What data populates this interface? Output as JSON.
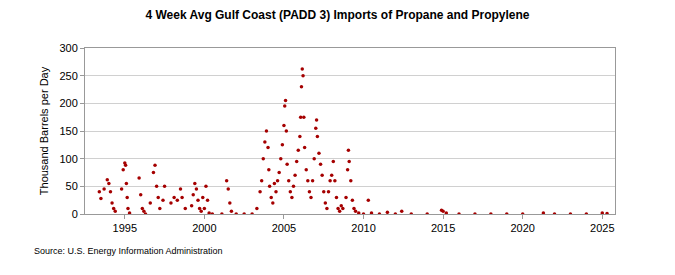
{
  "chart_data": {
    "type": "scatter",
    "title": "4 Week Avg Gulf Coast (PADD 3) Imports of Propane and Propylene",
    "y_label": "Thousand Barrels per Day",
    "source": "Source: U.S. Energy Information Administration",
    "x": [
      1993.4,
      1993.5,
      1993.7,
      1993.9,
      1994.0,
      1994.1,
      1994.2,
      1994.3,
      1994.4,
      1994.8,
      1994.9,
      1995.0,
      1995.05,
      1995.1,
      1995.15,
      1995.2,
      1995.3,
      1995.9,
      1996.0,
      1996.1,
      1996.2,
      1996.3,
      1996.6,
      1996.8,
      1996.9,
      1997.0,
      1997.1,
      1997.2,
      1997.4,
      1997.5,
      1997.9,
      1998.1,
      1998.3,
      1998.5,
      1998.6,
      1998.8,
      1999.2,
      1999.3,
      1999.4,
      1999.5,
      1999.6,
      1999.7,
      1999.8,
      1999.9,
      2000.0,
      2000.1,
      2000.2,
      2000.3,
      2000.5,
      2001.1,
      2001.4,
      2001.5,
      2001.6,
      2001.7,
      2002.0,
      2002.5,
      2003.0,
      2003.3,
      2003.5,
      2003.6,
      2003.7,
      2003.8,
      2003.9,
      2004.0,
      2004.05,
      2004.1,
      2004.2,
      2004.3,
      2004.4,
      2004.5,
      2004.6,
      2004.7,
      2004.8,
      2004.9,
      2005.0,
      2005.05,
      2005.1,
      2005.15,
      2005.2,
      2005.3,
      2005.4,
      2005.5,
      2005.6,
      2005.7,
      2005.8,
      2005.9,
      2006.0,
      2006.05,
      2006.1,
      2006.15,
      2006.2,
      2006.25,
      2006.3,
      2006.4,
      2006.5,
      2006.6,
      2006.7,
      2006.8,
      2006.9,
      2007.0,
      2007.05,
      2007.1,
      2007.2,
      2007.3,
      2007.4,
      2007.5,
      2007.6,
      2007.7,
      2007.8,
      2007.9,
      2008.0,
      2008.1,
      2008.2,
      2008.3,
      2008.4,
      2008.5,
      2008.6,
      2008.7,
      2008.9,
      2009.0,
      2009.05,
      2009.1,
      2009.2,
      2009.3,
      2009.4,
      2009.5,
      2009.7,
      2010.0,
      2010.3,
      2010.5,
      2011.0,
      2011.5,
      2012.0,
      2012.4,
      2013.0,
      2014.0,
      2014.9,
      2015.0,
      2015.2,
      2016.0,
      2017.0,
      2018.0,
      2019.0,
      2020.0,
      2021.3,
      2022.0,
      2023.0,
      2024.0,
      2025.0,
      2025.3
    ],
    "values": [
      40,
      28,
      45,
      62,
      55,
      40,
      20,
      10,
      5,
      45,
      80,
      92,
      88,
      55,
      30,
      10,
      2,
      65,
      35,
      10,
      5,
      0,
      20,
      75,
      88,
      50,
      30,
      10,
      25,
      50,
      20,
      30,
      25,
      45,
      30,
      10,
      15,
      35,
      55,
      45,
      25,
      10,
      5,
      30,
      10,
      50,
      25,
      2,
      0,
      0,
      60,
      45,
      20,
      5,
      0,
      0,
      0,
      10,
      40,
      60,
      100,
      130,
      150,
      120,
      80,
      50,
      30,
      20,
      55,
      40,
      60,
      75,
      100,
      125,
      160,
      195,
      205,
      150,
      90,
      60,
      40,
      30,
      50,
      70,
      95,
      115,
      140,
      175,
      230,
      262,
      250,
      175,
      120,
      80,
      60,
      40,
      30,
      60,
      100,
      155,
      170,
      140,
      110,
      90,
      70,
      40,
      20,
      10,
      40,
      60,
      70,
      95,
      60,
      30,
      10,
      5,
      15,
      10,
      30,
      80,
      115,
      95,
      60,
      25,
      10,
      5,
      2,
      0,
      25,
      2,
      0,
      3,
      0,
      5,
      0,
      0,
      7,
      5,
      2,
      0,
      0,
      0,
      0,
      0,
      2,
      0,
      0,
      0,
      2,
      1
    ],
    "color": "#a50000",
    "marker": "circle",
    "xlim": [
      1992.5,
      2025.8
    ],
    "xticks": [
      1995,
      2000,
      2005,
      2010,
      2015,
      2020,
      2025
    ],
    "ylim": [
      0,
      300
    ],
    "yticks": [
      0,
      50,
      100,
      150,
      200,
      250,
      300
    ],
    "grid": true
  }
}
